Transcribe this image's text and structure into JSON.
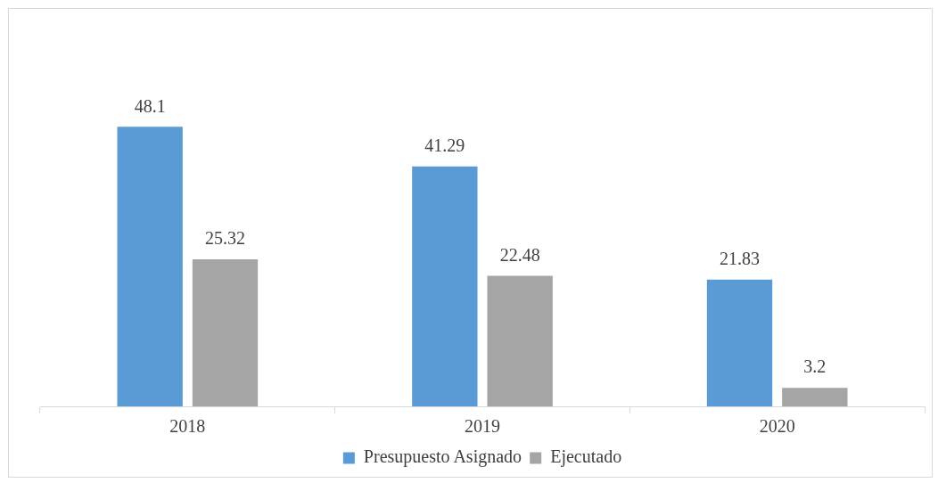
{
  "chart_data": {
    "type": "bar",
    "categories": [
      "2018",
      "2019",
      "2020"
    ],
    "series": [
      {
        "name": "Presupuesto Asignado",
        "color": "#5b9bd5",
        "values": [
          48.1,
          41.29,
          21.83
        ]
      },
      {
        "name": "Ejecutado",
        "color": "#a5a5a5",
        "values": [
          25.32,
          22.48,
          3.2
        ]
      }
    ],
    "data_labels": true,
    "grid": false,
    "legend": "bottom"
  }
}
